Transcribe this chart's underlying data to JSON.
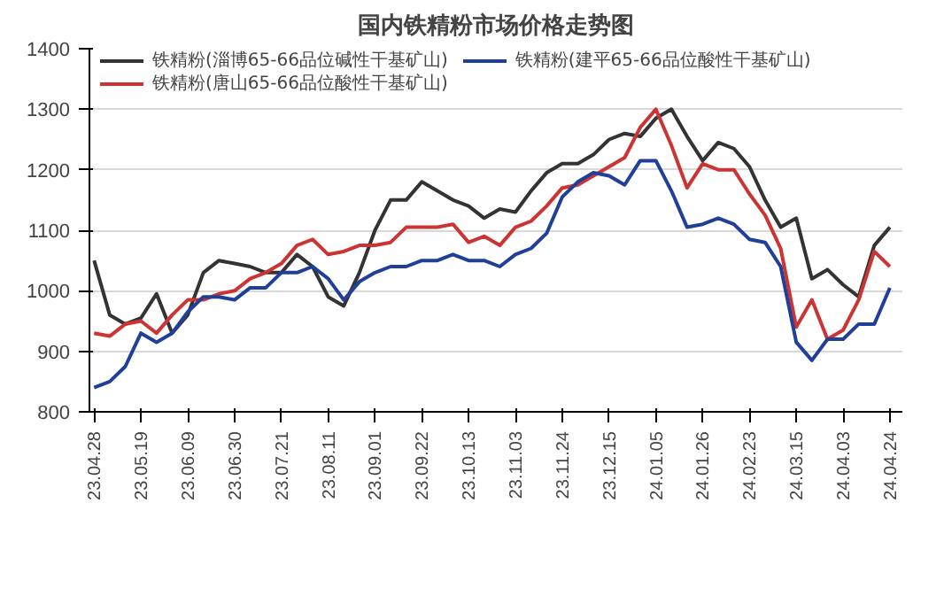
{
  "chart_data": {
    "type": "line",
    "title": "国内铁精粉市场价格走势图",
    "categories": [
      "23.04.28",
      null,
      null,
      "23.05.19",
      null,
      null,
      "23.06.09",
      null,
      null,
      "23.06.30",
      null,
      null,
      "23.07.21",
      null,
      null,
      "23.08.11",
      null,
      null,
      "23.09.01",
      null,
      null,
      "23.09.22",
      null,
      null,
      "23.10.13",
      null,
      null,
      "23.11.03",
      null,
      null,
      "23.11.24",
      null,
      null,
      "23.12.15",
      null,
      null,
      "24.01.05",
      null,
      null,
      "24.01.26",
      null,
      null,
      "24.02.23",
      null,
      null,
      "24.03.15",
      null,
      null,
      "24.04.03",
      null,
      null,
      "24.04.24"
    ],
    "series": [
      {
        "name": "铁精粉(淄博65-66品位碱性干基矿山)",
        "color": "#333333",
        "values": [
          1050,
          960,
          945,
          955,
          995,
          930,
          960,
          1030,
          1050,
          1045,
          1040,
          1030,
          1030,
          1060,
          1040,
          990,
          975,
          1030,
          1100,
          1150,
          1150,
          1180,
          1165,
          1150,
          1140,
          1120,
          1135,
          1130,
          1165,
          1195,
          1210,
          1210,
          1225,
          1250,
          1260,
          1255,
          1285,
          1300,
          1255,
          1215,
          1245,
          1235,
          1205,
          1150,
          1105,
          1120,
          1020,
          1035,
          1010,
          990,
          1075,
          1105
        ]
      },
      {
        "name": "铁精粉(唐山65-66品位酸性干基矿山)",
        "color": "#cc3333",
        "values": [
          930,
          925,
          945,
          950,
          930,
          960,
          985,
          985,
          995,
          1000,
          1020,
          1030,
          1045,
          1075,
          1085,
          1060,
          1065,
          1075,
          1075,
          1080,
          1105,
          1105,
          1105,
          1110,
          1080,
          1090,
          1075,
          1105,
          1115,
          1140,
          1170,
          1175,
          1190,
          1205,
          1220,
          1270,
          1300,
          1240,
          1170,
          1210,
          1200,
          1200,
          1160,
          1125,
          1070,
          940,
          985,
          920,
          935,
          985,
          1065,
          1040
        ]
      },
      {
        "name": "铁精粉(建平65-66品位酸性干基矿山)",
        "color": "#1f3f99",
        "values": [
          840,
          850,
          875,
          930,
          915,
          930,
          965,
          990,
          990,
          985,
          1005,
          1005,
          1030,
          1030,
          1040,
          1020,
          985,
          1015,
          1030,
          1040,
          1040,
          1050,
          1050,
          1060,
          1050,
          1050,
          1040,
          1060,
          1070,
          1095,
          1155,
          1180,
          1195,
          1190,
          1175,
          1215,
          1215,
          1165,
          1105,
          1110,
          1120,
          1110,
          1085,
          1080,
          1040,
          915,
          885,
          920,
          920,
          945,
          945,
          1005
        ]
      }
    ],
    "ylim": [
      800,
      1400
    ],
    "yticks": [
      800,
      900,
      1000,
      1100,
      1200,
      1300,
      1400
    ],
    "grid": "y",
    "legend": "top",
    "line_style": "solid",
    "marker": "none"
  }
}
